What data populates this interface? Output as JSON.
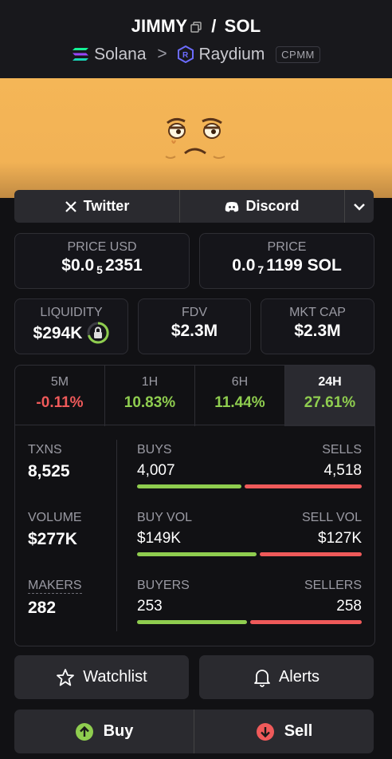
{
  "header": {
    "base_symbol": "JIMMY",
    "separator": "/",
    "quote_symbol": "SOL",
    "chain": "Solana",
    "chevron": ">",
    "dex": "Raydium",
    "pool_type": "CPMM"
  },
  "socials": {
    "twitter_label": "Twitter",
    "discord_label": "Discord"
  },
  "price": {
    "usd_label": "PRICE USD",
    "usd_prefix": "$0.0",
    "usd_zeros": "5",
    "usd_digits": "2351",
    "native_label": "PRICE",
    "native_prefix": "0.0",
    "native_zeros": "7",
    "native_digits": "1199 SOL"
  },
  "metrics": {
    "liquidity_label": "LIQUIDITY",
    "liquidity_value": "$294K",
    "fdv_label": "FDV",
    "fdv_value": "$2.3M",
    "mcap_label": "MKT CAP",
    "mcap_value": "$2.3M"
  },
  "timeframes": [
    {
      "label": "5M",
      "value": "-0.11%"
    },
    {
      "label": "1H",
      "value": "10.83%"
    },
    {
      "label": "6H",
      "value": "11.44%"
    },
    {
      "label": "24H",
      "value": "27.61%"
    }
  ],
  "stats": {
    "txns_label": "TXNS",
    "txns_value": "8,525",
    "volume_label": "VOLUME",
    "volume_value": "$277K",
    "makers_label": "MAKERS",
    "makers_value": "282",
    "buys_label": "BUYS",
    "buys_value": "4,007",
    "sells_label": "SELLS",
    "sells_value": "4,518",
    "buy_vol_label": "BUY VOL",
    "buy_vol_value": "$149K",
    "sell_vol_label": "SELL VOL",
    "sell_vol_value": "$127K",
    "buyers_label": "BUYERS",
    "buyers_value": "253",
    "sellers_label": "SELLERS",
    "sellers_value": "258",
    "buys_ratio": 0.47,
    "buy_vol_ratio": 0.54,
    "buyers_ratio": 0.495
  },
  "actions": {
    "watchlist_label": "Watchlist",
    "alerts_label": "Alerts",
    "buy_label": "Buy",
    "sell_label": "Sell"
  },
  "colors": {
    "positive": "#8fcd4f",
    "negative": "#ef5a5a",
    "banner": "#f4b657"
  }
}
